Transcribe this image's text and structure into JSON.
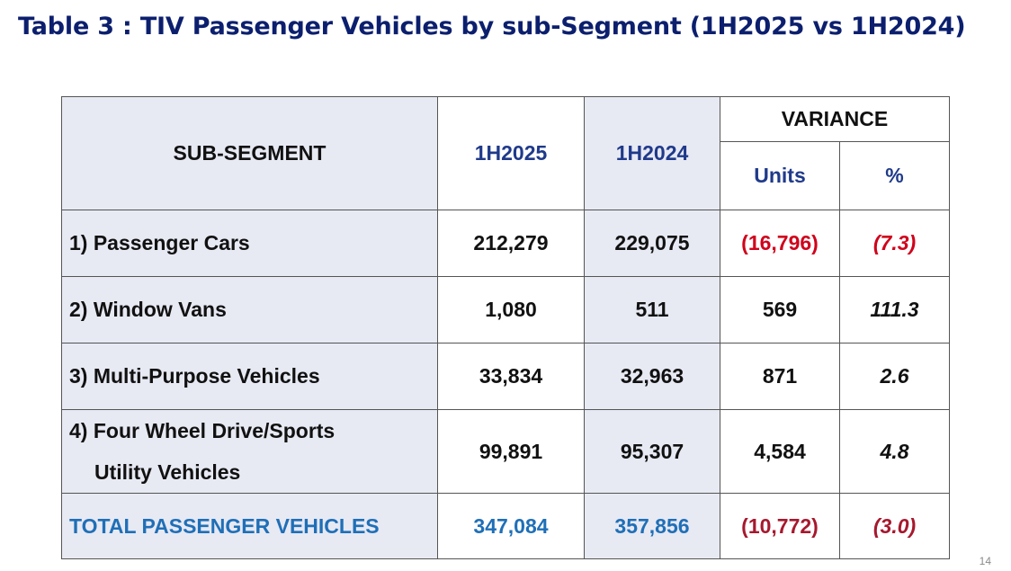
{
  "title": "Table 3 : TIV Passenger Vehicles by sub-Segment (1H2025 vs 1H2024)",
  "headers": {
    "sub_segment": "SUB-SEGMENT",
    "year_current": "1H2025",
    "year_previous": "1H2024",
    "variance": "VARIANCE",
    "units": "Units",
    "percent": "%"
  },
  "rows": [
    {
      "label": "1) Passenger Cars",
      "current": "212,279",
      "previous": "229,075",
      "var_units": "(16,796)",
      "var_pct": "(7.3)"
    },
    {
      "label": "2) Window Vans",
      "current": "1,080",
      "previous": "511",
      "var_units": "569",
      "var_pct": "111.3"
    },
    {
      "label": "3) Multi-Purpose Vehicles",
      "current": "33,834",
      "previous": "32,963",
      "var_units": "871",
      "var_pct": "2.6"
    },
    {
      "label_line1": "4) Four Wheel Drive/Sports",
      "label_line2": "Utility Vehicles",
      "current": "99,891",
      "previous": "95,307",
      "var_units": "4,584",
      "var_pct": "4.8"
    }
  ],
  "total": {
    "label": "TOTAL PASSENGER VEHICLES",
    "current": "347,084",
    "previous": "357,856",
    "var_units": "(10,772)",
    "var_pct": "(3.0)"
  },
  "page_number": "14",
  "colors": {
    "title": "#0c1f6e",
    "header_blue": "#1f3a8a",
    "total_blue": "#1f6fb7",
    "negative_red": "#d0021b",
    "shade": "#e7e9f3"
  }
}
